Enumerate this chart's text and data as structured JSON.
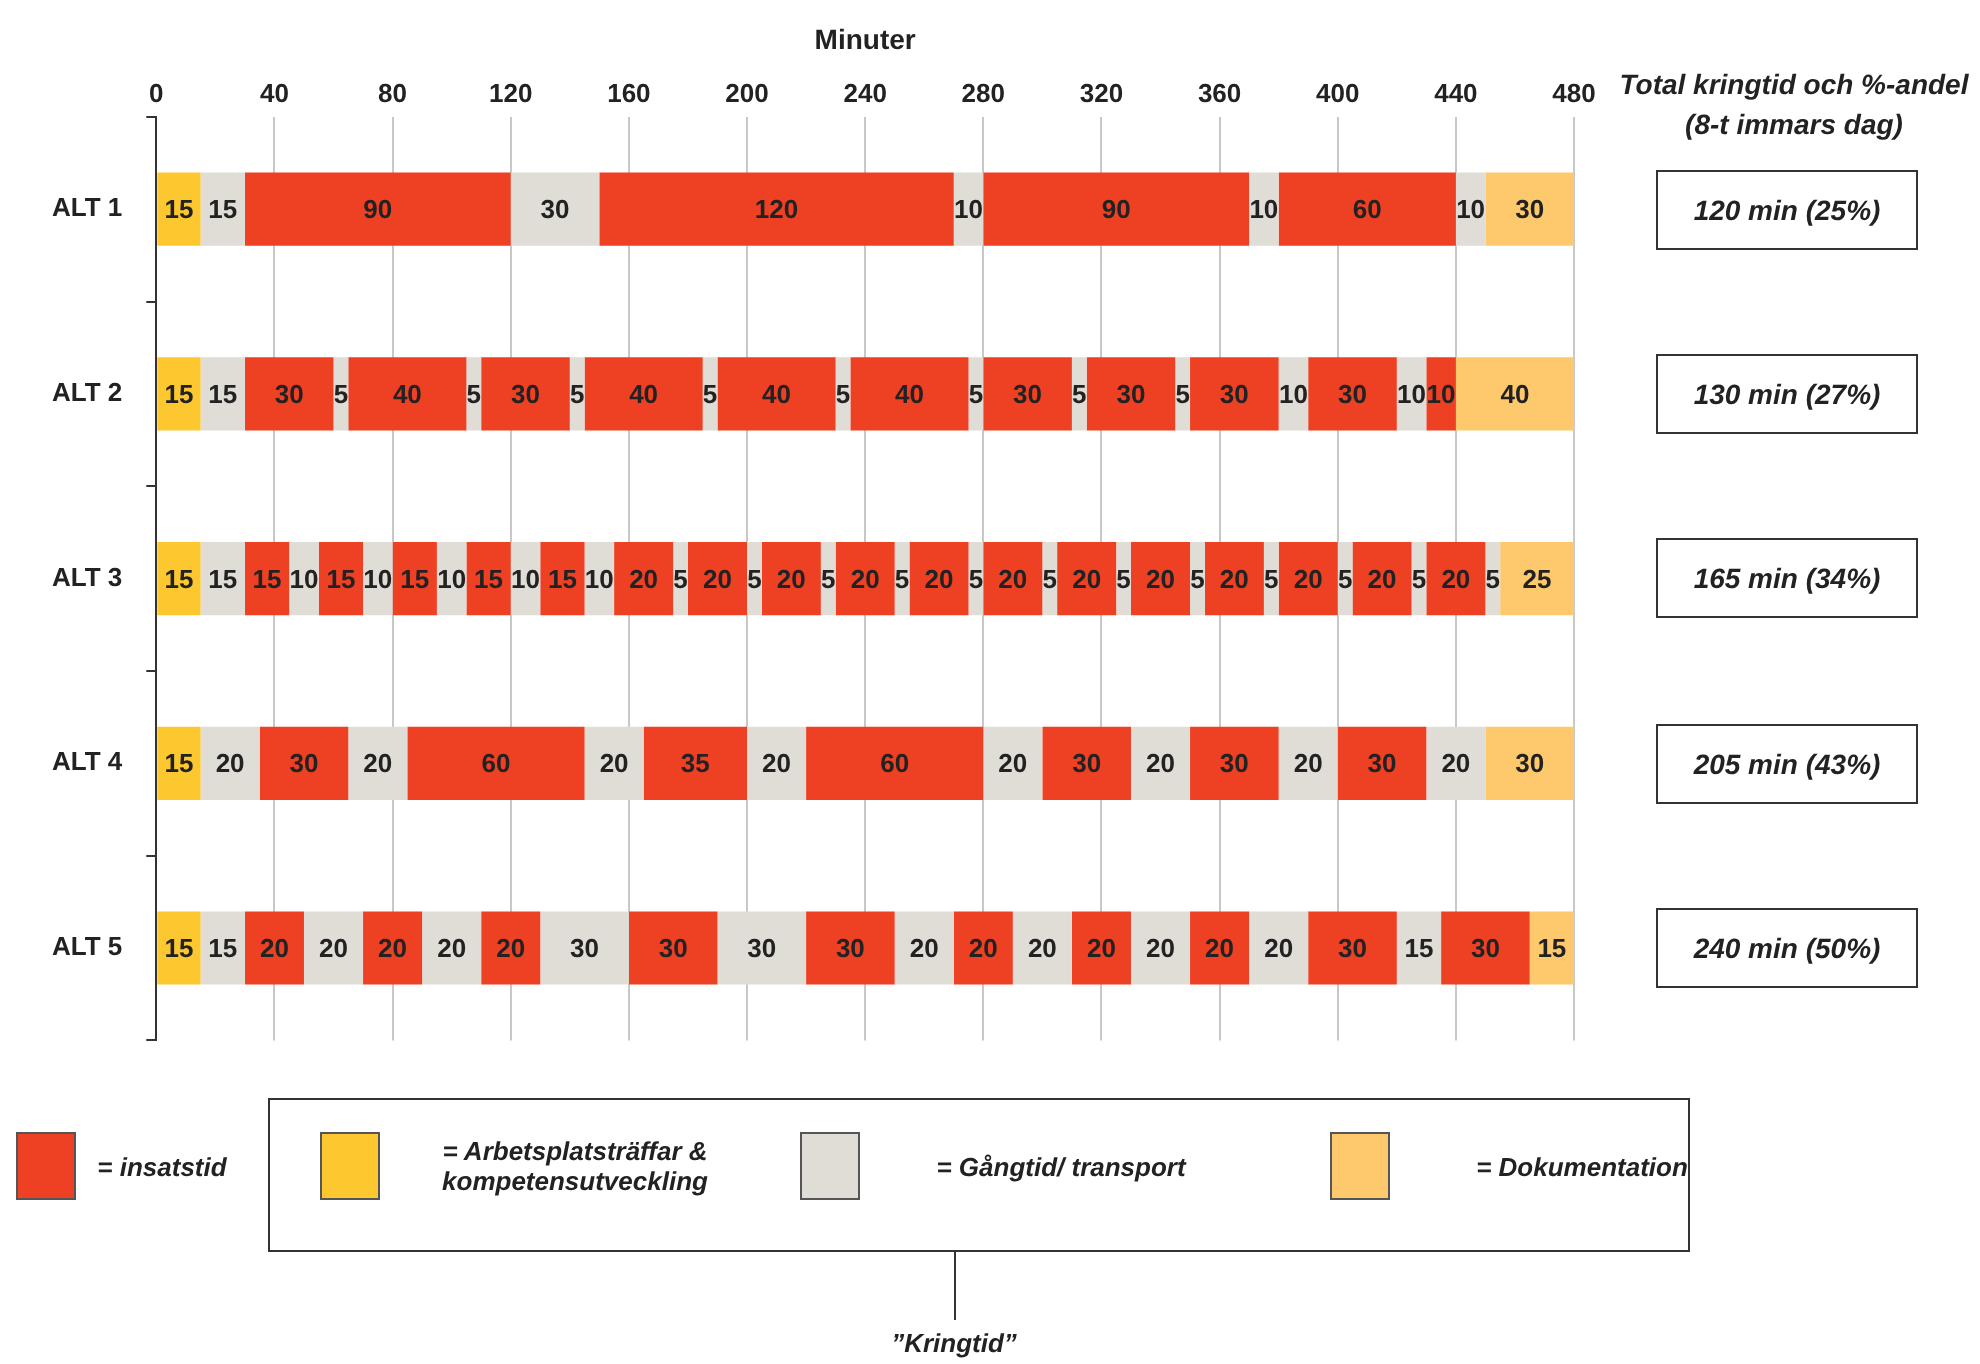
{
  "chart_data": {
    "type": "bar",
    "orientation": "horizontal",
    "stacked": true,
    "data_labels": true,
    "grid": "x",
    "legend": false,
    "xlabel": "Minuter",
    "xlim": [
      0,
      480
    ],
    "xticks": [
      0,
      40,
      80,
      120,
      160,
      200,
      240,
      280,
      320,
      360,
      400,
      440,
      480
    ],
    "categories": [
      "ALT 1",
      "ALT 2",
      "ALT 3",
      "ALT 4",
      "ALT 5"
    ],
    "annotations": [
      "Total kringtid och %-andel (8-t immars dag)",
      "120 min (25%)",
      "130 min (27%)",
      "165 min (34%)",
      "205 min (43%)",
      "240 min (50%)",
      "= insatstid",
      "= Arbetsplatsträffar & kompetensutveckling",
      "= Gångtid/ transport",
      "= Dokumentation",
      "”Kringtid”"
    ],
    "series": [
      {
        "values": [
          15,
          15,
          15,
          15,
          15
        ],
        "colors": [
          "#fdc82f",
          "#fdc82f",
          "#fdc82f",
          "#fdc82f",
          "#fdc82f"
        ]
      },
      {
        "values": [
          15,
          15,
          15,
          20,
          15
        ],
        "colors": [
          "#e0ddd6",
          "#e0ddd6",
          "#e0ddd6",
          "#e0ddd6",
          "#e0ddd6"
        ]
      },
      {
        "values": [
          90,
          30,
          15,
          30,
          20
        ],
        "colors": [
          "#ee4023",
          "#ee4023",
          "#ee4023",
          "#ee4023",
          "#ee4023"
        ]
      },
      {
        "values": [
          30,
          5,
          10,
          20,
          20
        ],
        "colors": [
          "#e0ddd6",
          "#e0ddd6",
          "#e0ddd6",
          "#e0ddd6",
          "#e0ddd6"
        ]
      },
      {
        "values": [
          120,
          40,
          15,
          60,
          20
        ],
        "colors": [
          "#ee4023",
          "#ee4023",
          "#ee4023",
          "#ee4023",
          "#ee4023"
        ]
      },
      {
        "values": [
          10,
          5,
          10,
          20,
          20
        ],
        "colors": [
          "#e0ddd6",
          "#e0ddd6",
          "#e0ddd6",
          "#e0ddd6",
          "#e0ddd6"
        ]
      },
      {
        "values": [
          90,
          30,
          15,
          35,
          20
        ],
        "colors": [
          "#ee4023",
          "#ee4023",
          "#ee4023",
          "#ee4023",
          "#ee4023"
        ]
      },
      {
        "values": [
          10,
          5,
          10,
          20,
          30
        ],
        "colors": [
          "#e0ddd6",
          "#e0ddd6",
          "#e0ddd6",
          "#e0ddd6",
          "#e0ddd6"
        ]
      },
      {
        "values": [
          60,
          40,
          15,
          60,
          30
        ],
        "colors": [
          "#ee4023",
          "#ee4023",
          "#ee4023",
          "#ee4023",
          "#ee4023"
        ]
      },
      {
        "values": [
          10,
          5,
          10,
          20,
          30
        ],
        "colors": [
          "#e0ddd6",
          "#e0ddd6",
          "#e0ddd6",
          "#e0ddd6",
          "#e0ddd6"
        ]
      },
      {
        "values": [
          30,
          40,
          15,
          30,
          30
        ],
        "colors": [
          "#fec96c",
          "#ee4023",
          "#ee4023",
          "#ee4023",
          "#ee4023"
        ]
      },
      {
        "values": [
          null,
          5,
          10,
          20,
          20
        ],
        "colors": [
          null,
          "#e0ddd6",
          "#e0ddd6",
          "#e0ddd6",
          "#e0ddd6"
        ]
      },
      {
        "values": [
          null,
          40,
          20,
          30,
          20
        ],
        "colors": [
          null,
          "#ee4023",
          "#ee4023",
          "#ee4023",
          "#ee4023"
        ]
      },
      {
        "values": [
          null,
          5,
          5,
          20,
          20
        ],
        "colors": [
          null,
          "#e0ddd6",
          "#e0ddd6",
          "#e0ddd6",
          "#e0ddd6"
        ]
      },
      {
        "values": [
          null,
          30,
          20,
          30,
          20
        ],
        "colors": [
          null,
          "#ee4023",
          "#ee4023",
          "#ee4023",
          "#ee4023"
        ]
      },
      {
        "values": [
          null,
          5,
          5,
          20,
          20
        ],
        "colors": [
          null,
          "#e0ddd6",
          "#e0ddd6",
          "#e0ddd6",
          "#e0ddd6"
        ]
      },
      {
        "values": [
          null,
          30,
          20,
          30,
          20
        ],
        "colors": [
          null,
          "#ee4023",
          "#ee4023",
          "#fec96c",
          "#ee4023"
        ]
      },
      {
        "values": [
          null,
          5,
          5,
          null,
          20
        ],
        "colors": [
          null,
          "#e0ddd6",
          "#e0ddd6",
          null,
          "#e0ddd6"
        ]
      },
      {
        "values": [
          null,
          30,
          20,
          null,
          30
        ],
        "colors": [
          null,
          "#ee4023",
          "#ee4023",
          null,
          "#ee4023"
        ]
      },
      {
        "values": [
          null,
          10,
          5,
          null,
          15
        ],
        "colors": [
          null,
          "#e0ddd6",
          "#e0ddd6",
          null,
          "#e0ddd6"
        ]
      },
      {
        "values": [
          null,
          30,
          20,
          null,
          30
        ],
        "colors": [
          null,
          "#ee4023",
          "#ee4023",
          null,
          "#ee4023"
        ]
      },
      {
        "values": [
          null,
          10,
          5,
          null,
          15
        ],
        "colors": [
          null,
          "#e0ddd6",
          "#e0ddd6",
          null,
          "#fec96c"
        ]
      },
      {
        "values": [
          null,
          10,
          20,
          null,
          null
        ],
        "colors": [
          null,
          "#ee4023",
          "#ee4023",
          null,
          null
        ]
      },
      {
        "values": [
          null,
          40,
          5,
          null,
          null
        ],
        "colors": [
          null,
          "#fec96c",
          "#e0ddd6",
          null,
          null
        ]
      },
      {
        "values": [
          null,
          null,
          20,
          null,
          null
        ],
        "colors": [
          null,
          null,
          "#ee4023",
          null,
          null
        ]
      },
      {
        "values": [
          null,
          null,
          5,
          null,
          null
        ],
        "colors": [
          null,
          null,
          "#e0ddd6",
          null,
          null
        ]
      },
      {
        "values": [
          null,
          null,
          20,
          null,
          null
        ],
        "colors": [
          null,
          null,
          "#ee4023",
          null,
          null
        ]
      },
      {
        "values": [
          null,
          null,
          5,
          null,
          null
        ],
        "colors": [
          null,
          null,
          "#e0ddd6",
          null,
          null
        ]
      },
      {
        "values": [
          null,
          null,
          20,
          null,
          null
        ],
        "colors": [
          null,
          null,
          "#ee4023",
          null,
          null
        ]
      },
      {
        "values": [
          null,
          null,
          5,
          null,
          null
        ],
        "colors": [
          null,
          null,
          "#e0ddd6",
          null,
          null
        ]
      },
      {
        "values": [
          null,
          null,
          20,
          null,
          null
        ],
        "colors": [
          null,
          null,
          "#ee4023",
          null,
          null
        ]
      },
      {
        "values": [
          null,
          null,
          5,
          null,
          null
        ],
        "colors": [
          null,
          null,
          "#e0ddd6",
          null,
          null
        ]
      },
      {
        "values": [
          null,
          null,
          20,
          null,
          null
        ],
        "colors": [
          null,
          null,
          "#ee4023",
          null,
          null
        ]
      },
      {
        "values": [
          null,
          null,
          5,
          null,
          null
        ],
        "colors": [
          null,
          null,
          "#e0ddd6",
          null,
          null
        ]
      },
      {
        "values": [
          null,
          null,
          20,
          null,
          null
        ],
        "colors": [
          null,
          null,
          "#ee4023",
          null,
          null
        ]
      },
      {
        "values": [
          null,
          null,
          5,
          null,
          null
        ],
        "colors": [
          null,
          null,
          "#e0ddd6",
          null,
          null
        ]
      },
      {
        "values": [
          null,
          null,
          25,
          null,
          null
        ],
        "colors": [
          null,
          null,
          "#fec96c",
          null,
          null
        ]
      }
    ]
  }
}
